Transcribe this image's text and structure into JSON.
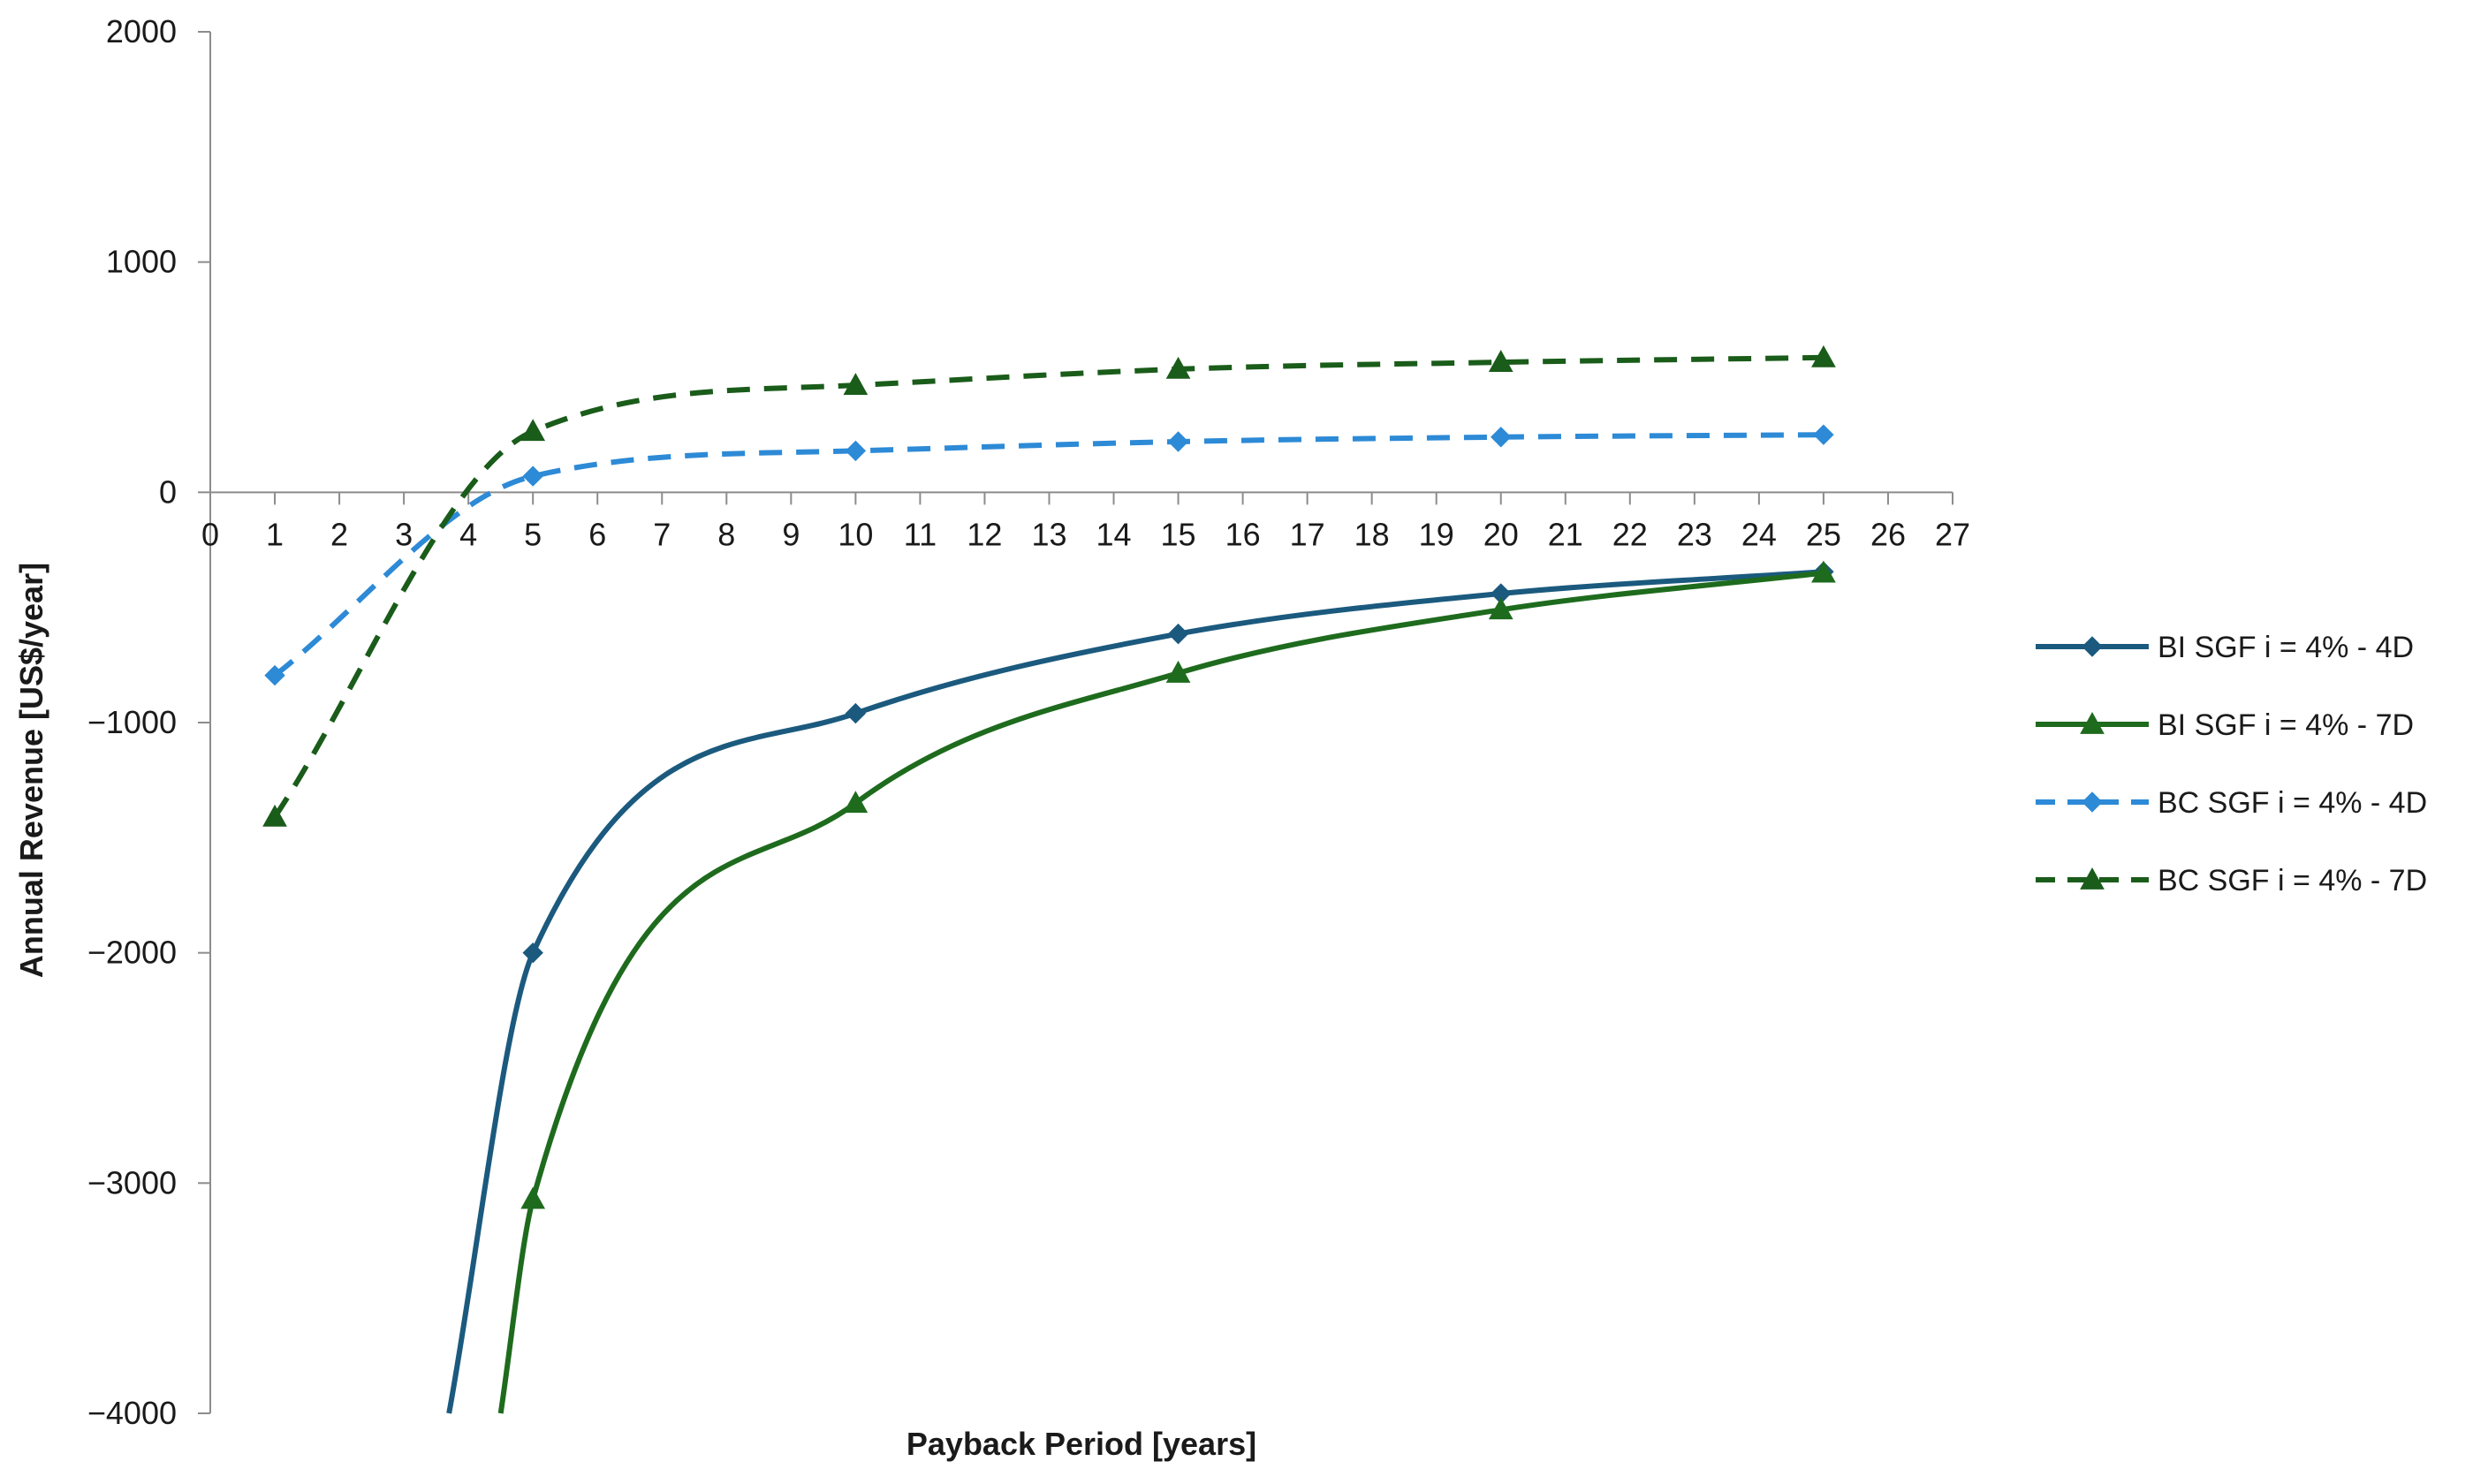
{
  "chart_data": {
    "type": "line",
    "title": "",
    "xlabel": "Payback Period [years]",
    "ylabel": "Annual Revenue [US$/year]",
    "xlim": [
      0,
      27
    ],
    "ylim": [
      -4000,
      2000
    ],
    "x_ticks": [
      0,
      1,
      2,
      3,
      4,
      5,
      6,
      7,
      8,
      9,
      10,
      11,
      12,
      13,
      14,
      15,
      16,
      17,
      18,
      19,
      20,
      21,
      22,
      23,
      24,
      25,
      26,
      27
    ],
    "y_ticks": [
      2000,
      1000,
      0,
      -1000,
      -2000,
      -3000,
      -4000
    ],
    "y_tick_labels": [
      "2000",
      "1000",
      "0",
      "−1000",
      "−2000",
      "−3000",
      "−4000"
    ],
    "grid": false,
    "legend_position": "right",
    "series": [
      {
        "name": "BI SGF i = 4% - 4D",
        "color": "#1b5a7e",
        "style": "solid",
        "marker": "diamond",
        "x": [
          5,
          10,
          15,
          20,
          25
        ],
        "y": [
          -2000,
          -960,
          -615,
          -440,
          -345
        ],
        "curve_extension": [
          [
            3.7,
            -4000
          ]
        ]
      },
      {
        "name": "BI SGF i = 4% - 7D",
        "color": "#1e6b1e",
        "style": "solid",
        "marker": "triangle",
        "x": [
          5,
          10,
          15,
          20,
          25
        ],
        "y": [
          -3070,
          -1350,
          -785,
          -510,
          -350
        ],
        "curve_extension": [
          [
            4.5,
            -4000
          ]
        ]
      },
      {
        "name": "BC SGF i = 4% - 4D",
        "color": "#2d8ad6",
        "style": "dashed",
        "marker": "diamond",
        "x": [
          1,
          5,
          10,
          15,
          20,
          25
        ],
        "y": [
          -795,
          70,
          180,
          220,
          240,
          250
        ]
      },
      {
        "name": "BC SGF i = 4% - 7D",
        "color": "#1a5c1a",
        "style": "dashed",
        "marker": "triangle",
        "x": [
          1,
          5,
          10,
          15,
          20,
          25
        ],
        "y": [
          -1410,
          265,
          465,
          535,
          565,
          585
        ]
      }
    ]
  }
}
